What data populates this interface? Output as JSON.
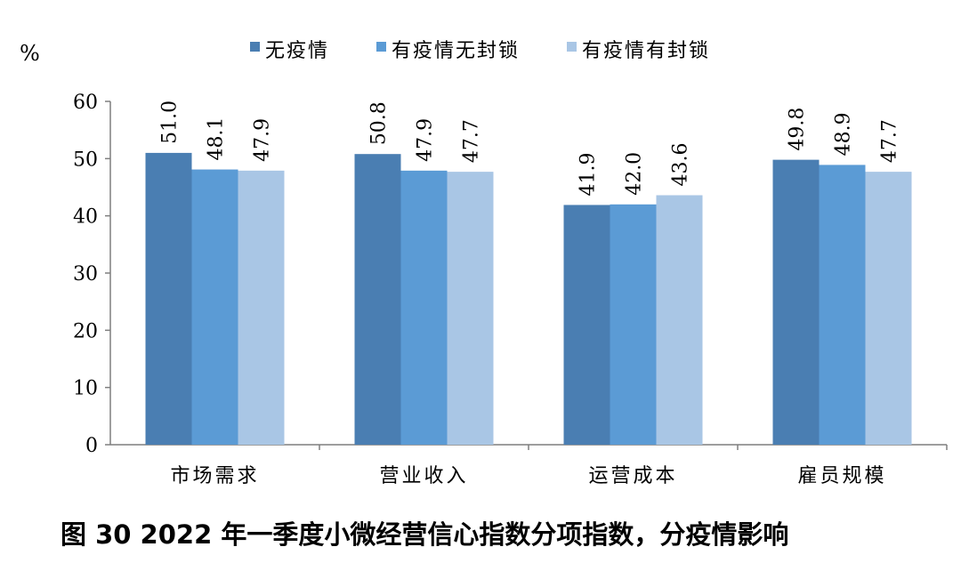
{
  "chart_data": {
    "type": "bar",
    "y_unit": "%",
    "categories": [
      "市场需求",
      "营业收入",
      "运营成本",
      "雇员规模"
    ],
    "series": [
      {
        "name": "无疫情",
        "color": "#4a7eb2",
        "values": [
          51.0,
          50.8,
          41.9,
          49.8
        ]
      },
      {
        "name": "有疫情无封锁",
        "color": "#5b9bd5",
        "values": [
          48.1,
          47.9,
          42.0,
          48.9
        ]
      },
      {
        "name": "有疫情有封锁",
        "color": "#a9c6e5",
        "values": [
          47.9,
          47.7,
          43.6,
          47.7
        ]
      }
    ],
    "ylim": [
      0,
      60
    ],
    "yticks": [
      0,
      10,
      20,
      30,
      40,
      50,
      60
    ],
    "legend": "top",
    "grid": false,
    "caption": "图 30 2022 年一季度小微经营信心指数分项指数，分疫情影响"
  }
}
